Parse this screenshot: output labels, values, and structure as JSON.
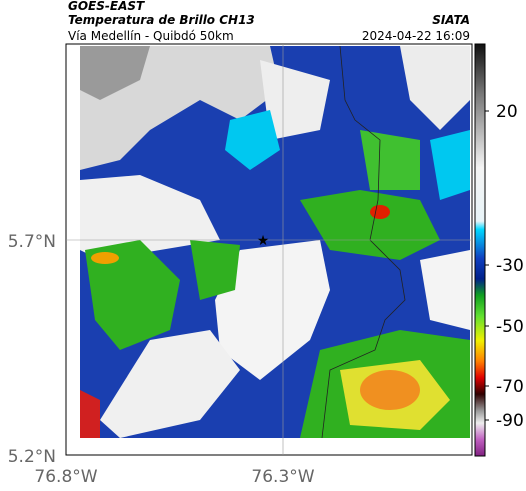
{
  "header": {
    "source": "GOES-EAST",
    "title": "Temperatura de Brillo CH13",
    "organization": "SIATA",
    "route": "Vía Medellín - Quibdó 50km",
    "timestamp": "2024-04-22 16:09"
  },
  "axes": {
    "y_labels": [
      "5.7°N",
      "5.2°N"
    ],
    "x_labels": [
      "76.8°W",
      "76.3°W"
    ]
  },
  "colorbar": {
    "labels": [
      20,
      -30,
      -50,
      -70,
      -90
    ]
  }
}
